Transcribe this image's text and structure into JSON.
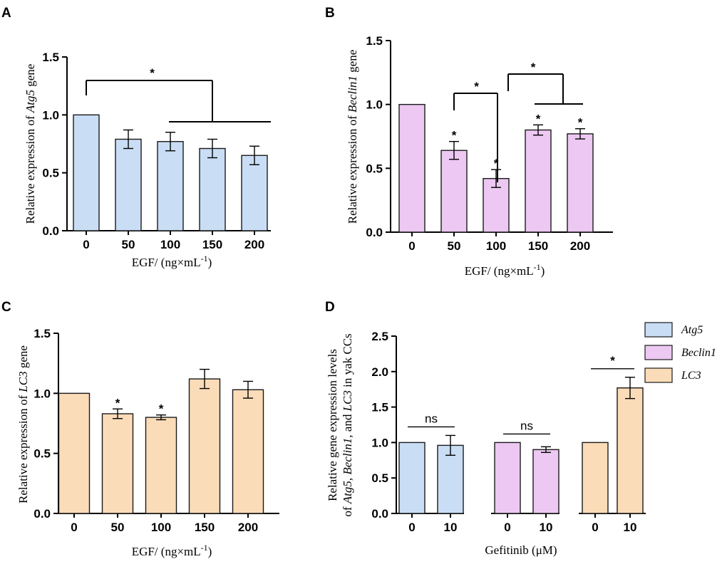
{
  "chart_data": [
    {
      "panel": "A",
      "type": "bar",
      "categories": [
        "0",
        "50",
        "100",
        "150",
        "200"
      ],
      "values": [
        1.0,
        0.79,
        0.77,
        0.71,
        0.65
      ],
      "errors": [
        0,
        0.08,
        0.08,
        0.08,
        0.08
      ],
      "ylabel": "Relative expression of Atg5 gene",
      "ylabel_prefix": "Relative expression of ",
      "ylabel_italic": "Atg5",
      "ylabel_suffix": " gene",
      "xlabel": "EGF/ (ng×mL-1)",
      "xlabel_main": "EGF/ (ng×mL",
      "xlabel_sup": "-1",
      "xlabel_end": ")",
      "ylim": [
        0,
        1.5
      ],
      "yticks": [
        "0.0",
        "0.5",
        "1.0",
        "1.5"
      ],
      "color": "#c9ddf5",
      "star_labels": [],
      "comparisons": [
        {
          "label": "*",
          "from": "0",
          "to": "100-200"
        }
      ]
    },
    {
      "panel": "B",
      "type": "bar",
      "categories": [
        "0",
        "50",
        "100",
        "150",
        "200"
      ],
      "values": [
        1.0,
        0.64,
        0.42,
        0.8,
        0.77
      ],
      "errors": [
        0,
        0.07,
        0.07,
        0.04,
        0.04
      ],
      "ylabel": "Relative expression of Beclin1 gene",
      "ylabel_prefix": "Relative expression of ",
      "ylabel_italic": "Beclin1",
      "ylabel_suffix": " gene",
      "xlabel": "EGF/ (ng×mL-1)",
      "xlabel_main": "EGF/ (ng×mL",
      "xlabel_sup": "-1",
      "xlabel_end": ")",
      "ylim": [
        0,
        1.5
      ],
      "yticks": [
        "0.0",
        "0.5",
        "1.0",
        "1.5"
      ],
      "color": "#ecc8f2",
      "star_labels": [
        "",
        "*",
        "*",
        "*",
        "*"
      ],
      "comparisons": [
        {
          "label": "*",
          "from": "50",
          "to": "100"
        },
        {
          "label": "*",
          "from": "100",
          "to": "150-200"
        }
      ]
    },
    {
      "panel": "C",
      "type": "bar",
      "categories": [
        "0",
        "50",
        "100",
        "150",
        "200"
      ],
      "values": [
        1.0,
        0.83,
        0.8,
        1.12,
        1.03
      ],
      "errors": [
        0,
        0.04,
        0.02,
        0.08,
        0.07
      ],
      "ylabel": "Relative expression of LC3 gene",
      "ylabel_prefix": "Relative expression of ",
      "ylabel_italic": "LC3",
      "ylabel_suffix": " gene",
      "xlabel": "EGF/ (ng×mL-1)",
      "xlabel_main": "EGF/ (ng×mL",
      "xlabel_sup": "-1",
      "xlabel_end": ")",
      "ylim": [
        0,
        1.5
      ],
      "yticks": [
        "0.0",
        "0.5",
        "1.0",
        "1.5"
      ],
      "color": "#fbdcb8",
      "star_labels": [
        "",
        "*",
        "*",
        "",
        ""
      ],
      "comparisons": []
    },
    {
      "panel": "D",
      "type": "bar",
      "xlabel": "Gefitinib (μM)",
      "ylabel_line1": "Relative gene expression levels",
      "ylabel_line2_parts": [
        {
          "text": "of ",
          "italic": false
        },
        {
          "text": "Atg5",
          "italic": true
        },
        {
          "text": ", ",
          "italic": false
        },
        {
          "text": "Beclin1",
          "italic": true
        },
        {
          "text": ", and ",
          "italic": false
        },
        {
          "text": "LC3",
          "italic": true
        },
        {
          "text": " in yak CCs",
          "italic": false
        }
      ],
      "ylim": [
        0,
        2.5
      ],
      "yticks": [
        "0.0",
        "0.5",
        "1.0",
        "1.5",
        "2.0",
        "2.5"
      ],
      "groups": [
        {
          "name": "Atg5",
          "color": "#c9ddf5",
          "categories": [
            "0",
            "10"
          ],
          "values": [
            1.0,
            0.96
          ],
          "errors": [
            0,
            0.14
          ],
          "comparison": "ns"
        },
        {
          "name": "Beclin1",
          "color": "#ecc8f2",
          "categories": [
            "0",
            "10"
          ],
          "values": [
            1.0,
            0.9
          ],
          "errors": [
            0,
            0.04
          ],
          "comparison": "ns"
        },
        {
          "name": "LC3",
          "color": "#fbdcb8",
          "categories": [
            "0",
            "10"
          ],
          "values": [
            1.0,
            1.77
          ],
          "errors": [
            0,
            0.15
          ],
          "comparison": "*"
        }
      ],
      "legend": [
        "Atg5",
        "Beclin1",
        "LC3"
      ]
    }
  ]
}
